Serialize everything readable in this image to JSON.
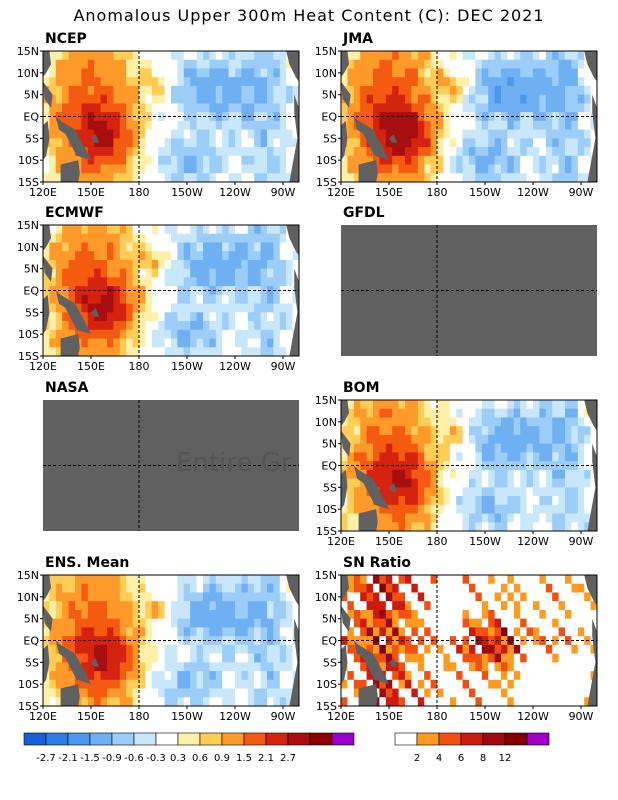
{
  "title": "Anomalous Upper 300m Heat Content (C): DEC 2021",
  "lat_ticks": [
    "15N",
    "10N",
    "5N",
    "EQ",
    "5S",
    "10S",
    "15S"
  ],
  "lon_ticks": [
    "120E",
    "150E",
    "180",
    "150W",
    "120W",
    "90W"
  ],
  "panels": [
    {
      "id": "ncep",
      "label": "NCEP",
      "status": "data",
      "pattern": "west_warm"
    },
    {
      "id": "jma",
      "label": "JMA",
      "status": "data",
      "pattern": "west_warm_strong"
    },
    {
      "id": "ecmwf",
      "label": "ECMWF",
      "status": "data",
      "pattern": "west_warm"
    },
    {
      "id": "gfdl",
      "label": "GFDL",
      "status": "missing",
      "pattern": ""
    },
    {
      "id": "nasa",
      "label": "NASA",
      "status": "missing",
      "pattern": ""
    },
    {
      "id": "bom",
      "label": "BOM",
      "status": "data",
      "pattern": "west_warm"
    },
    {
      "id": "ens",
      "label": "ENS. Mean",
      "status": "data",
      "pattern": "west_warm"
    },
    {
      "id": "sn",
      "label": "SN Ratio",
      "status": "data",
      "pattern": "sn"
    }
  ],
  "nasa_message": "Entire Gr",
  "colorbar_anomaly": {
    "colors": [
      "#1a5fd6",
      "#2e7de3",
      "#4b97ec",
      "#6fb0f3",
      "#9cccf8",
      "#c8e7fb",
      "#ffffff",
      "#fff0a8",
      "#ffcc55",
      "#ff9a2a",
      "#f45a10",
      "#d42410",
      "#a80e10",
      "#8a0000",
      "#9a00cc"
    ],
    "labels": [
      "-2.7",
      "-2.1",
      "-1.5",
      "-0.9",
      "-0.6",
      "-0.3",
      "0.3",
      "0.6",
      "0.9",
      "1.5",
      "2.1",
      "2.7"
    ]
  },
  "colorbar_sn": {
    "colors": [
      "#ffffff",
      "#ff9a20",
      "#f05010",
      "#cc1a10",
      "#9a0a10",
      "#800000",
      "#a000cc"
    ],
    "labels": [
      "2",
      "4",
      "6",
      "8",
      "12"
    ]
  },
  "colors": {
    "land": "#606060",
    "missing": "#606060"
  }
}
